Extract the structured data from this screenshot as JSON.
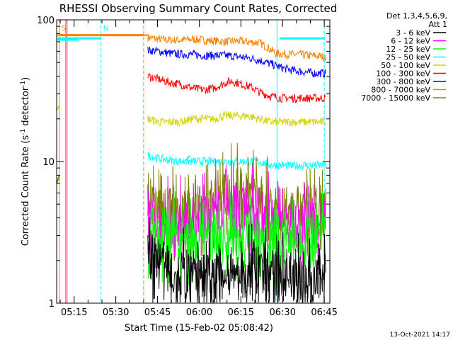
{
  "chart_data": {
    "type": "line",
    "title": "RHESSI Observing Summary Count Rates, Corrected",
    "xlabel": "Start Time (15-Feb-02 05:08:42)",
    "ylabel_main": "Corrected Count Rate (s",
    "ylabel_sup1": "-1",
    "ylabel_mid": " detector",
    "ylabel_sup2": "-1",
    "ylabel_end": ")",
    "yscale": "log",
    "ylim": [
      1,
      100
    ],
    "xlim": [
      "05:08:42",
      "06:47:00"
    ],
    "y_ticks": [
      {
        "value": 1,
        "label": "1"
      },
      {
        "value": 10,
        "label": "10"
      },
      {
        "value": 100,
        "label": "100"
      }
    ],
    "x_ticks": [
      {
        "value": "05:15",
        "label": "05:15"
      },
      {
        "value": "05:30",
        "label": "05:30"
      },
      {
        "value": "05:45",
        "label": "05:45"
      },
      {
        "value": "06:00",
        "label": "06:00"
      },
      {
        "value": "06:15",
        "label": "06:15"
      },
      {
        "value": "06:30",
        "label": "06:30"
      },
      {
        "value": "06:45",
        "label": "06:45"
      }
    ],
    "legend_header": [
      "Det 1,3,4,5,6,9,",
      "Att 1"
    ],
    "legend_placement": "right",
    "series": [
      {
        "name": "3 - 6 keV",
        "color": "#000000"
      },
      {
        "name": "6 - 12 keV",
        "color": "#ff00ff"
      },
      {
        "name": "12 - 25 keV",
        "color": "#00ff00"
      },
      {
        "name": "25 - 50 keV",
        "color": "#00ffff"
      },
      {
        "name": "50 - 100 keV",
        "color": "#d4d400"
      },
      {
        "name": "100 - 300 keV",
        "color": "#ff0000"
      },
      {
        "name": "300 - 800 keV",
        "color": "#0000ff"
      },
      {
        "name": "800 - 7000 keV",
        "color": "#ff8000"
      },
      {
        "name": "7000 - 15000 keV",
        "color": "#808000"
      }
    ],
    "segments": [
      {
        "start": "05:41:30",
        "end": "06:45:30",
        "levels": [
          {
            "series": "800 - 7000 keV",
            "values": [
              [
                0,
                75
              ],
              [
                4,
                73
              ],
              [
                8,
                72
              ],
              [
                12,
                72
              ],
              [
                16,
                73
              ],
              [
                20,
                72
              ],
              [
                24,
                71
              ],
              [
                28,
                70
              ],
              [
                32,
                71
              ],
              [
                36,
                70
              ],
              [
                40,
                69
              ],
              [
                42,
                66
              ],
              [
                44,
                62
              ],
              [
                46,
                58
              ],
              [
                50,
                57
              ],
              [
                54,
                57
              ],
              [
                58,
                56
              ],
              [
                64,
                55
              ]
            ]
          },
          {
            "series": "300 - 800 keV",
            "values": [
              [
                0,
                61
              ],
              [
                4,
                60
              ],
              [
                8,
                58
              ],
              [
                12,
                57
              ],
              [
                16,
                57
              ],
              [
                20,
                56
              ],
              [
                24,
                56
              ],
              [
                28,
                56
              ],
              [
                32,
                55
              ],
              [
                36,
                54
              ],
              [
                40,
                52
              ],
              [
                44,
                49
              ],
              [
                48,
                46
              ],
              [
                52,
                44
              ],
              [
                56,
                43
              ],
              [
                60,
                42
              ],
              [
                64,
                42
              ]
            ]
          },
          {
            "series": "100 - 300 keV",
            "values": [
              [
                0,
                40
              ],
              [
                4,
                38
              ],
              [
                8,
                36
              ],
              [
                12,
                35
              ],
              [
                16,
                33
              ],
              [
                20,
                32
              ],
              [
                24,
                33
              ],
              [
                28,
                36
              ],
              [
                30,
                37
              ],
              [
                34,
                35
              ],
              [
                38,
                33
              ],
              [
                40,
                31
              ],
              [
                44,
                29
              ],
              [
                48,
                28
              ],
              [
                52,
                28
              ],
              [
                56,
                28
              ],
              [
                60,
                28
              ],
              [
                64,
                28
              ]
            ]
          },
          {
            "series": "50 - 100 keV",
            "values": [
              [
                0,
                20
              ],
              [
                4,
                19
              ],
              [
                8,
                19
              ],
              [
                12,
                19
              ],
              [
                16,
                20
              ],
              [
                20,
                20
              ],
              [
                24,
                20
              ],
              [
                28,
                21
              ],
              [
                32,
                21
              ],
              [
                36,
                21
              ],
              [
                40,
                20
              ],
              [
                44,
                19
              ],
              [
                48,
                19
              ],
              [
                52,
                19
              ],
              [
                56,
                19
              ],
              [
                60,
                19
              ],
              [
                64,
                19
              ]
            ]
          },
          {
            "series": "25 - 50 keV",
            "values": [
              [
                0,
                11
              ],
              [
                4,
                10.5
              ],
              [
                8,
                10.2
              ],
              [
                12,
                10
              ],
              [
                16,
                10
              ],
              [
                20,
                10
              ],
              [
                24,
                10
              ],
              [
                28,
                10
              ],
              [
                32,
                10
              ],
              [
                36,
                10
              ],
              [
                40,
                10
              ],
              [
                44,
                9.5
              ],
              [
                48,
                9.4
              ],
              [
                52,
                9.3
              ],
              [
                56,
                9.4
              ],
              [
                60,
                9.4
              ],
              [
                64,
                9.4
              ]
            ]
          },
          {
            "series": "7000 - 15000 keV",
            "values": [
              [
                0,
                4.8
              ],
              [
                4,
                4.5
              ],
              [
                8,
                4.3
              ],
              [
                12,
                4.3
              ],
              [
                16,
                4.5
              ],
              [
                20,
                4.6
              ],
              [
                24,
                5.5
              ],
              [
                28,
                6.0
              ],
              [
                32,
                6.5
              ],
              [
                36,
                6.2
              ],
              [
                40,
                5.5
              ],
              [
                44,
                4.8
              ],
              [
                48,
                4.5
              ],
              [
                52,
                4.4
              ],
              [
                56,
                4.4
              ],
              [
                60,
                4.4
              ],
              [
                64,
                4.5
              ]
            ]
          },
          {
            "series": "6 - 12 keV",
            "values": [
              [
                0,
                4.0
              ],
              [
                4,
                3.9
              ],
              [
                8,
                3.7
              ],
              [
                12,
                3.6
              ],
              [
                16,
                3.7
              ],
              [
                20,
                3.8
              ],
              [
                24,
                4.2
              ],
              [
                28,
                4.6
              ],
              [
                32,
                4.8
              ],
              [
                36,
                4.5
              ],
              [
                40,
                4.2
              ],
              [
                44,
                3.9
              ],
              [
                48,
                3.7
              ],
              [
                52,
                3.6
              ],
              [
                56,
                3.6
              ],
              [
                60,
                3.6
              ],
              [
                64,
                3.7
              ]
            ]
          },
          {
            "series": "12 - 25 keV",
            "values": [
              [
                0,
                3.3
              ],
              [
                4,
                3.2
              ],
              [
                8,
                3.0
              ],
              [
                12,
                2.9
              ],
              [
                16,
                2.9
              ],
              [
                20,
                2.9
              ],
              [
                24,
                3.0
              ],
              [
                28,
                3.0
              ],
              [
                32,
                3.1
              ],
              [
                36,
                3.0
              ],
              [
                40,
                2.9
              ],
              [
                44,
                2.8
              ],
              [
                48,
                2.8
              ],
              [
                52,
                2.8
              ],
              [
                56,
                2.8
              ],
              [
                60,
                2.8
              ],
              [
                64,
                2.8
              ]
            ]
          },
          {
            "series": "3 - 6 keV",
            "values": [
              [
                0,
                2.3
              ],
              [
                4,
                2.0
              ],
              [
                8,
                1.6
              ],
              [
                12,
                1.6
              ],
              [
                16,
                1.5
              ],
              [
                20,
                1.5
              ],
              [
                24,
                1.5
              ],
              [
                28,
                1.5
              ],
              [
                32,
                1.5
              ],
              [
                36,
                1.6
              ],
              [
                40,
                1.7
              ],
              [
                44,
                1.6
              ],
              [
                48,
                1.5
              ],
              [
                52,
                1.5
              ],
              [
                56,
                1.5
              ],
              [
                60,
                1.5
              ],
              [
                64,
                1.5
              ]
            ]
          }
        ]
      }
    ],
    "pre_segment": [
      {
        "series": "800 - 7000 keV",
        "values": [
          [
            0,
            78
          ],
          [
            33,
            78
          ]
        ]
      },
      {
        "series": "25 - 50 keV",
        "values": [
          [
            0,
            72
          ],
          [
            8,
            72
          ]
        ]
      },
      {
        "series": "25 - 50 keV",
        "values": [
          [
            46,
            10
          ],
          [
            48,
            11
          ]
        ]
      },
      {
        "series": "50 - 100 keV",
        "values": [
          [
            0,
            23
          ],
          [
            1,
            25
          ]
        ]
      },
      {
        "series": "7000 - 15000 keV",
        "values": [
          [
            0,
            7
          ],
          [
            1,
            8
          ]
        ]
      }
    ],
    "vertical_markers": [
      {
        "label": "S",
        "time": "05:09:40",
        "color": "#ff8000",
        "style": "solid"
      },
      {
        "label": "",
        "time": "05:12:30",
        "color": "#ff8000",
        "style": "solid"
      },
      {
        "label": "",
        "time": "05:12:00",
        "color": "#ff00ff",
        "style": "solid"
      },
      {
        "label": "N",
        "time": "05:24:40",
        "color": "#00ffff",
        "style": "dashed"
      },
      {
        "label": "",
        "time": "05:40:00",
        "color": "#ff8000",
        "style": "dashed"
      },
      {
        "label": "",
        "time": "06:28:00",
        "color": "#00ffff",
        "style": "solid"
      },
      {
        "label": "",
        "time": "06:45:00",
        "color": "#00ffff",
        "style": "dashed"
      }
    ],
    "top_bars": [
      {
        "series": "800 - 7000 keV",
        "start": "05:10:00",
        "end": "05:40:00",
        "value": 78
      },
      {
        "series": "25 - 50 keV",
        "start": "05:09:00",
        "end": "05:24:40",
        "value": 74
      },
      {
        "series": "25 - 50 keV",
        "start": "06:29:00",
        "end": "06:45:00",
        "value": 74
      }
    ],
    "footer": "13-Oct-2021 14:17"
  }
}
